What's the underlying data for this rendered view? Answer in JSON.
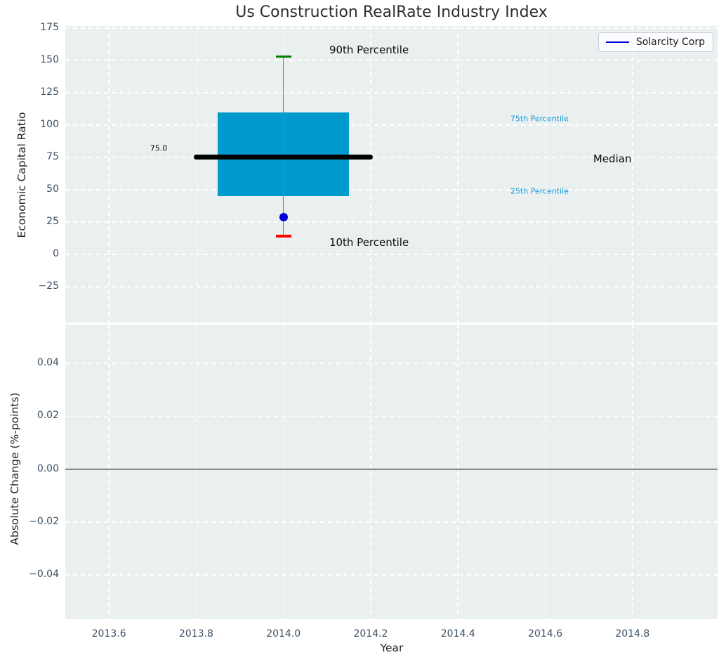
{
  "title": "Us Construction RealRate Industry Index",
  "colors": {
    "axes_bg": "#eaeff0",
    "grid": "#ffffff",
    "tick_label": "#3c4f63",
    "box_fill": "#009bcc",
    "median_line": "#000000",
    "p90_cap": "#008000",
    "p10_cap": "#ff0000",
    "company_dot": "#0000d6",
    "legend_line": "#0000dd",
    "annotation_cyan": "#1a9ad3",
    "annotation_black": "#0d0d0d",
    "whisker": "#7d7d7d",
    "zero_line": "#000000"
  },
  "chart_data": [
    {
      "type": "boxplot",
      "subplot": "top",
      "title": "Us Construction RealRate Industry Index",
      "ylabel": "Economic Capital Ratio",
      "xlim": [
        2013.5,
        2014.995
      ],
      "ylim": [
        -52.7,
        176.6
      ],
      "grid": true,
      "yticks": [
        175,
        150,
        125,
        100,
        75,
        50,
        25,
        0,
        -25
      ],
      "ytick_labels": [
        "175",
        "150",
        "125",
        "100",
        "75",
        "50",
        "25",
        "0",
        "−25"
      ],
      "xticks": [
        2013.6,
        2013.8,
        2014.0,
        2014.2,
        2014.4,
        2014.6,
        2014.8
      ],
      "legend": {
        "label": "Solarcity Corp",
        "position": "upper right"
      },
      "box": {
        "x": 2014.0,
        "p10": 14,
        "p25": 45,
        "median": 75,
        "p75": 110,
        "p90": 153,
        "company_value": 29,
        "box_left": 2013.85,
        "box_right": 2014.15,
        "median_left": 2013.8,
        "median_right": 2014.2,
        "cap_halfwidth": 0.018
      },
      "annotations": [
        {
          "text": "90th Percentile",
          "x": 2014.105,
          "y": 158,
          "size": 15,
          "color": "black",
          "anchor": "left"
        },
        {
          "text": "10th Percentile",
          "x": 2014.105,
          "y": 9,
          "size": 15,
          "color": "black",
          "anchor": "left"
        },
        {
          "text": "75th Percentile",
          "x": 2014.52,
          "y": 105,
          "size": 11,
          "color": "cyan",
          "anchor": "left"
        },
        {
          "text": "25th Percentile",
          "x": 2014.52,
          "y": 49,
          "size": 11,
          "color": "cyan",
          "anchor": "left"
        },
        {
          "text": "Median",
          "x": 2014.71,
          "y": 74,
          "size": 15,
          "color": "black",
          "anchor": "left"
        },
        {
          "text": "75.0",
          "x": 2013.714,
          "y": 82,
          "size": 11,
          "color": "black",
          "anchor": "center"
        }
      ]
    },
    {
      "type": "line",
      "subplot": "bottom",
      "ylabel": "Absolute Change (%-points)",
      "xlabel": "Year",
      "xlim": [
        2013.5,
        2014.995
      ],
      "ylim": [
        -0.0568,
        0.0547
      ],
      "grid": true,
      "yticks": [
        0.04,
        0.02,
        0.0,
        -0.02,
        -0.04
      ],
      "ytick_labels": [
        "0.04",
        "0.02",
        "0.00",
        "−0.02",
        "−0.04"
      ],
      "xticks": [
        2013.6,
        2013.8,
        2014.0,
        2014.2,
        2014.4,
        2014.6,
        2014.8
      ],
      "xtick_labels": [
        "2013.6",
        "2013.8",
        "2014.0",
        "2014.2",
        "2014.4",
        "2014.6",
        "2014.8"
      ],
      "zero_line": 0.0,
      "series": []
    }
  ]
}
